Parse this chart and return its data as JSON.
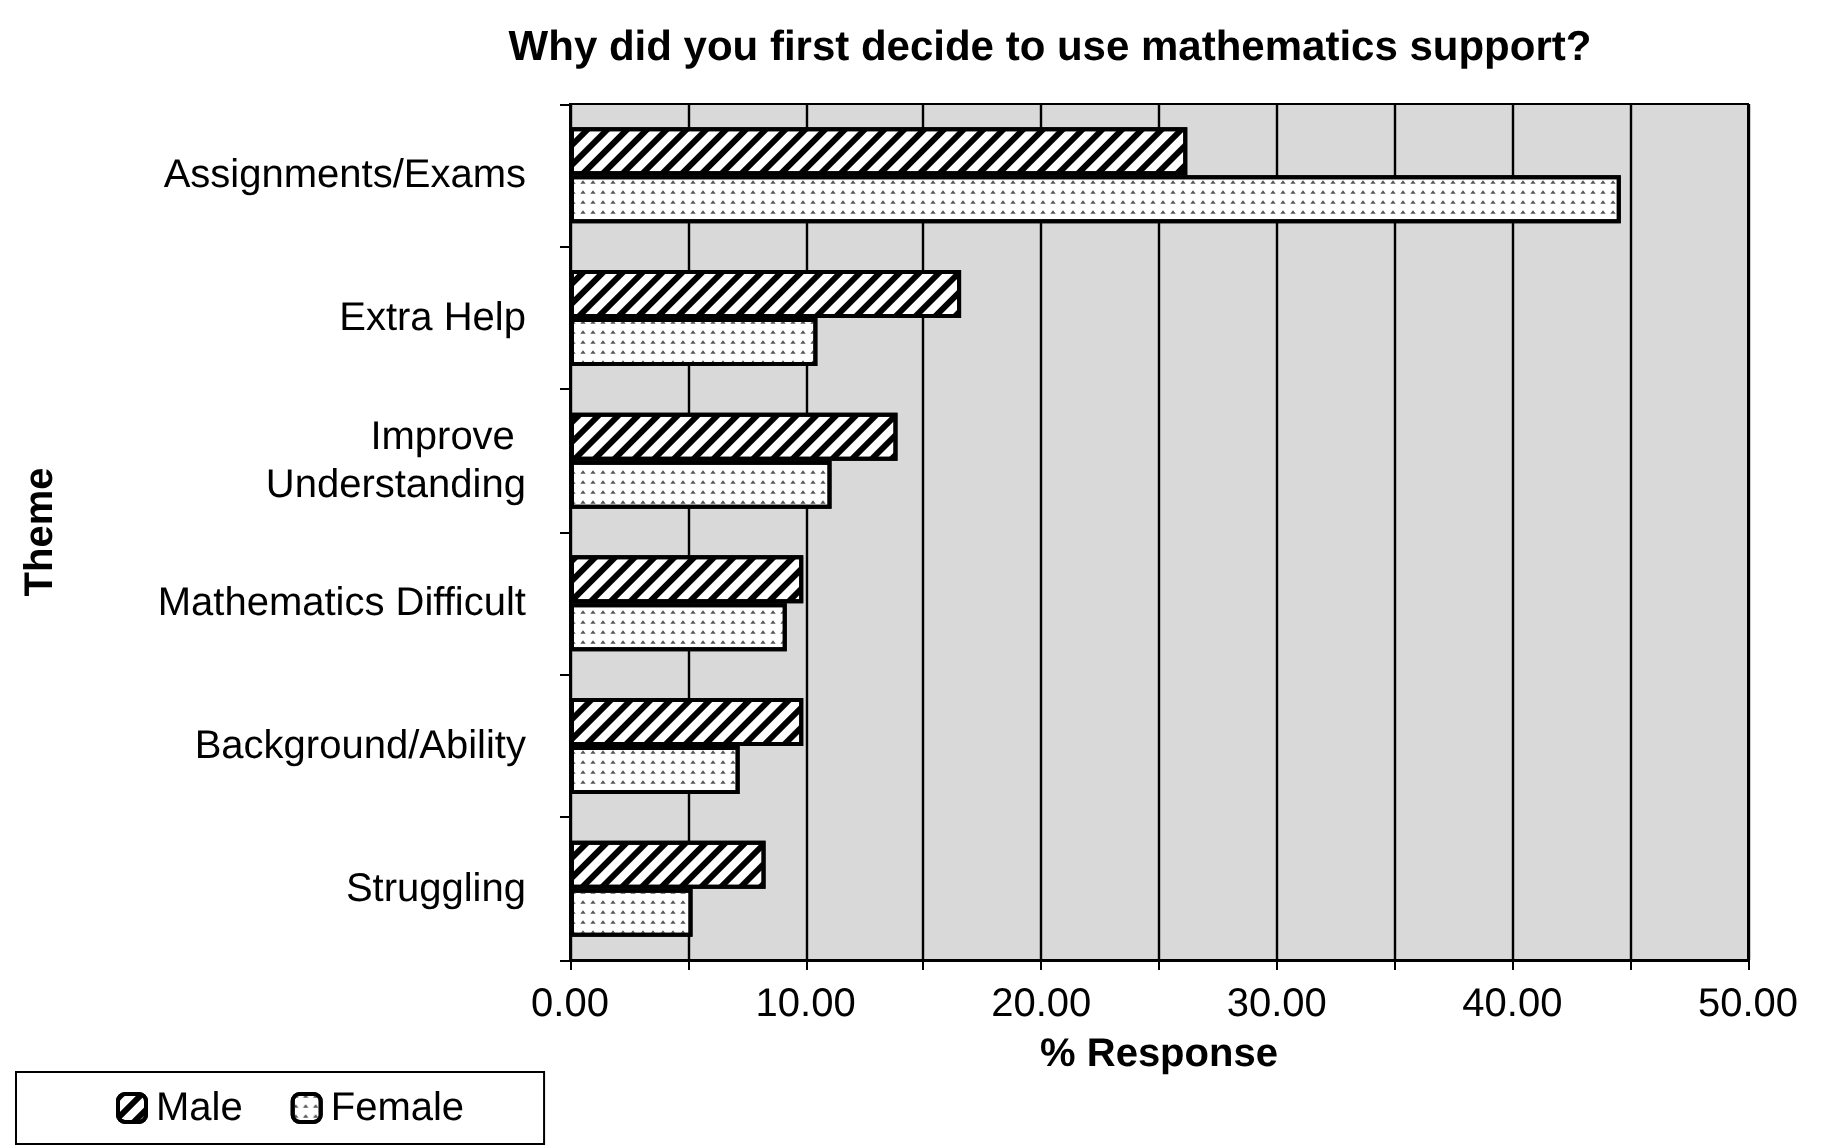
{
  "chart_data": {
    "type": "bar",
    "orientation": "horizontal",
    "title": "Why did you first decide to use mathematics support?",
    "xlabel": "% Response",
    "ylabel": "Theme",
    "categories": [
      "Assignments/Exams",
      "Extra Help",
      "Improve Understanding",
      "Mathematics Difficult",
      "Background/Ability",
      "Struggling"
    ],
    "series": [
      {
        "name": "Male",
        "color": "#ffffff",
        "values": [
          26.2,
          16.6,
          13.9,
          9.9,
          9.9,
          8.3
        ]
      },
      {
        "name": "Female",
        "color": "#ffffff",
        "values": [
          44.6,
          10.5,
          11.1,
          9.2,
          7.2,
          5.2
        ]
      }
    ],
    "xlim": [
      0,
      50
    ],
    "xticks": [
      {
        "value": 0,
        "label": "0.00"
      },
      {
        "value": 5,
        "label": null
      },
      {
        "value": 10,
        "label": "10.00"
      },
      {
        "value": 15,
        "label": null
      },
      {
        "value": 20,
        "label": "20.00"
      },
      {
        "value": 25,
        "label": null
      },
      {
        "value": 30,
        "label": "30.00"
      },
      {
        "value": 35,
        "label": null
      },
      {
        "value": 40,
        "label": "40.00"
      },
      {
        "value": 45,
        "label": null
      },
      {
        "value": 50,
        "label": "50.00"
      }
    ],
    "grid": "x",
    "legend": "bottom left"
  }
}
